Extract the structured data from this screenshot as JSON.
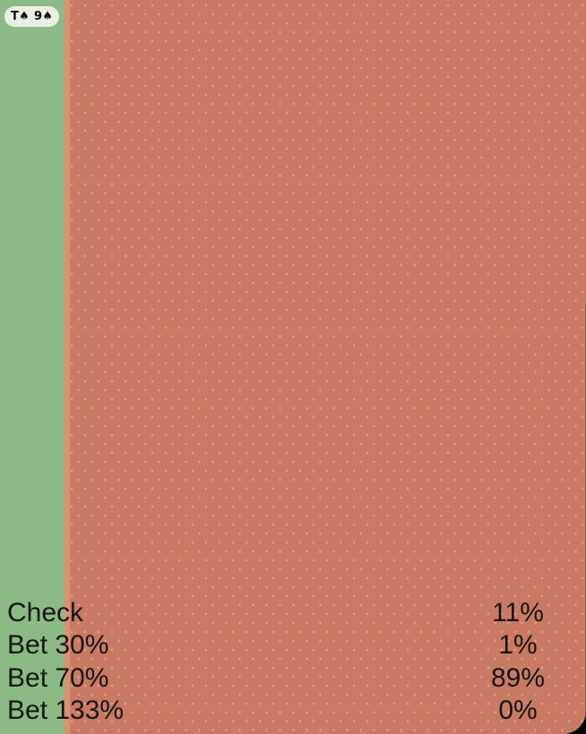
{
  "badge": {
    "label": "T♠ 9♠"
  },
  "strategy": {
    "actions": [
      {
        "label": "Check",
        "frequency": "11%",
        "width_pct": 11,
        "color": "#8CBA85"
      },
      {
        "label": "Bet 30%",
        "frequency": "1%",
        "width_pct": 1,
        "color": "#DE9070"
      },
      {
        "label": "Bet 70%",
        "frequency": "89%",
        "width_pct": 89,
        "color": "#CA7A62"
      },
      {
        "label": "Bet 133%",
        "frequency": "0%",
        "width_pct": 0,
        "color": null
      }
    ]
  },
  "colors": {
    "check_green": "#8CBA85",
    "bet30_light_salmon": "#DE9070",
    "bet70_salmon": "#CA7A62",
    "badge_bg": "#E9F1E5",
    "text": "#141414",
    "page_bg": "#000000"
  }
}
